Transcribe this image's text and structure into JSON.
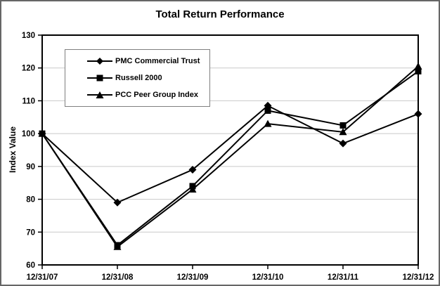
{
  "chart_data": {
    "type": "line",
    "title": "Total Return Performance",
    "xlabel": "",
    "ylabel": "Index Value",
    "categories": [
      "12/31/07",
      "12/31/08",
      "12/31/09",
      "12/31/10",
      "12/31/11",
      "12/31/12"
    ],
    "series": [
      {
        "name": "PMC Commercial Trust",
        "marker": "diamond",
        "values": [
          100,
          79,
          89,
          108.5,
          97,
          106
        ]
      },
      {
        "name": "Russell 2000",
        "marker": "square",
        "values": [
          100,
          66,
          84,
          107,
          102.5,
          119
        ]
      },
      {
        "name": "PCC Peer Group Index",
        "marker": "triangle",
        "values": [
          100,
          65.5,
          83,
          103,
          100.5,
          120.5
        ]
      }
    ],
    "ylim": [
      60,
      130
    ],
    "ytick_step": 10,
    "grid": true,
    "legend_position": "upper-left",
    "colors": {
      "line": "#000000",
      "grid": "#c9c9c9",
      "frame": "#000000",
      "background": "#ffffff",
      "outer_border": "#666666"
    }
  }
}
